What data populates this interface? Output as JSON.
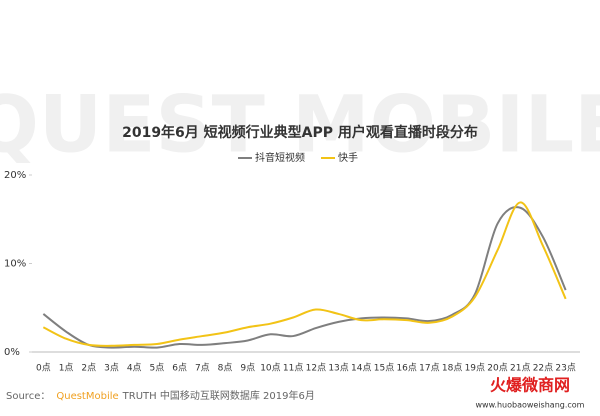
{
  "chart_data": {
    "type": "line",
    "title": "2019年6月 短视频行业典型APP 用户观看直播时段分布",
    "watermark": "QUEST MOBILE",
    "categories": [
      "0点",
      "1点",
      "2点",
      "3点",
      "4点",
      "5点",
      "6点",
      "7点",
      "8点",
      "9点",
      "10点",
      "11点",
      "12点",
      "13点",
      "14点",
      "15点",
      "16点",
      "17点",
      "18点",
      "19点",
      "20点",
      "21点",
      "22点",
      "23点"
    ],
    "series": [
      {
        "name": "抖音短视频",
        "color": "#7f7f7f",
        "values": [
          4.3,
          2.3,
          0.8,
          0.5,
          0.6,
          0.5,
          0.9,
          0.8,
          1.0,
          1.3,
          2.0,
          1.8,
          2.7,
          3.4,
          3.8,
          3.9,
          3.8,
          3.5,
          4.2,
          6.5,
          14.5,
          16.3,
          13.0,
          7.0
        ]
      },
      {
        "name": "快手",
        "color": "#f2c316",
        "values": [
          2.8,
          1.5,
          0.8,
          0.7,
          0.8,
          0.9,
          1.4,
          1.8,
          2.2,
          2.8,
          3.2,
          3.9,
          4.8,
          4.3,
          3.6,
          3.7,
          3.6,
          3.3,
          4.0,
          6.2,
          11.5,
          16.9,
          12.0,
          6.0
        ]
      }
    ],
    "ylim": [
      0,
      20
    ],
    "yticks": [
      {
        "value": 0,
        "label": "0%"
      },
      {
        "value": 10,
        "label": "10%"
      },
      {
        "value": 20,
        "label": "20%"
      }
    ],
    "grid": false,
    "source": {
      "prefix": "Source：",
      "brand": "QuestMobile",
      "text": "TRUTH 中国移动互联网数据库 2019年6月"
    },
    "logo": {
      "name": "火爆微商网",
      "url": "www.huobaoweishang.com"
    }
  }
}
